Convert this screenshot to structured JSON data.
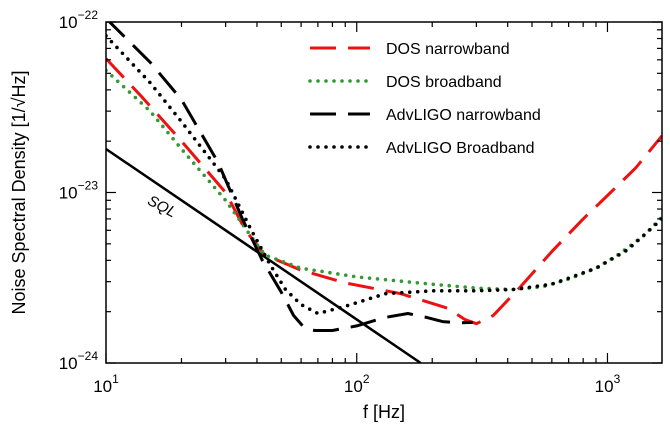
{
  "chart_data": {
    "type": "line",
    "xlabel": "f [Hz]",
    "ylabel": "Noise Spectral Density [1/√Hz]",
    "xscale": "log",
    "yscale": "log",
    "xlim": [
      10,
      1650
    ],
    "ylim": [
      1e-24,
      1e-22
    ],
    "x_ticks": [
      {
        "value": 10,
        "base": "10",
        "exp": "1"
      },
      {
        "value": 100,
        "base": "10",
        "exp": "2"
      },
      {
        "value": 1000,
        "base": "10",
        "exp": "3"
      }
    ],
    "y_ticks": [
      {
        "value": 1e-24,
        "base": "10",
        "exp": "−24"
      },
      {
        "value": 1e-23,
        "base": "10",
        "exp": "−23"
      },
      {
        "value": 1e-22,
        "base": "10",
        "exp": "−22"
      }
    ],
    "grid": false,
    "legend": "top-right",
    "annotations": [
      {
        "text": "SQL",
        "x": 14.5,
        "y": 8.6e-24
      }
    ],
    "series": [
      {
        "name": "SQL",
        "color": "#000000",
        "style": "solid",
        "in_legend": false,
        "points": [
          [
            10,
            1.8e-23
          ],
          [
            180,
            1e-24
          ]
        ]
      },
      {
        "name": "DOS narrowband",
        "color": "#ee1111",
        "style": "longdash",
        "in_legend": true,
        "points": [
          [
            10,
            6.1e-23
          ],
          [
            14,
            3.6e-23
          ],
          [
            20,
            2e-23
          ],
          [
            30,
            1e-23
          ],
          [
            36,
            6e-24
          ],
          [
            43,
            4.3e-24
          ],
          [
            60,
            3.5e-24
          ],
          [
            90,
            2.95e-24
          ],
          [
            150,
            2.55e-24
          ],
          [
            230,
            2.1e-24
          ],
          [
            270,
            1.8e-24
          ],
          [
            300,
            1.7e-24
          ],
          [
            350,
            1.9e-24
          ],
          [
            450,
            2.8e-24
          ],
          [
            600,
            4.5e-24
          ],
          [
            800,
            7e-24
          ],
          [
            1000,
            9.6e-24
          ],
          [
            1300,
            1.4e-23
          ],
          [
            1650,
            2.15e-23
          ]
        ]
      },
      {
        "name": "DOS broadband",
        "color": "#339933",
        "style": "dotted",
        "in_legend": true,
        "points": [
          [
            10,
            5.2e-23
          ],
          [
            15,
            3e-23
          ],
          [
            20,
            1.8e-23
          ],
          [
            30,
            9e-24
          ],
          [
            38,
            5.5e-24
          ],
          [
            43,
            4.3e-24
          ],
          [
            60,
            3.6e-24
          ],
          [
            100,
            3.2e-24
          ],
          [
            200,
            2.9e-24
          ],
          [
            300,
            2.75e-24
          ],
          [
            420,
            2.7e-24
          ],
          [
            550,
            2.8e-24
          ],
          [
            700,
            3.1e-24
          ],
          [
            900,
            3.6e-24
          ],
          [
            1100,
            4.3e-24
          ],
          [
            1400,
            5.6e-24
          ],
          [
            1650,
            7.2e-24
          ]
        ]
      },
      {
        "name": "AdvLIGO narrowband",
        "color": "#000000",
        "style": "longdash",
        "in_legend": true,
        "points": [
          [
            10,
            1.05e-22
          ],
          [
            15,
            5.8e-23
          ],
          [
            20,
            3.5e-23
          ],
          [
            28,
            1.5e-23
          ],
          [
            35,
            7e-24
          ],
          [
            42,
            4e-24
          ],
          [
            50,
            2.6e-24
          ],
          [
            56,
            1.9e-24
          ],
          [
            62,
            1.6e-24
          ],
          [
            68,
            1.55e-24
          ],
          [
            80,
            1.55e-24
          ],
          [
            100,
            1.65e-24
          ],
          [
            130,
            1.85e-24
          ],
          [
            160,
            1.95e-24
          ],
          [
            190,
            1.85e-24
          ],
          [
            220,
            1.75e-24
          ],
          [
            260,
            1.72e-24
          ],
          [
            290,
            1.73e-24
          ]
        ]
      },
      {
        "name": "AdvLIGO Broadband",
        "color": "#000000",
        "style": "dotted",
        "in_legend": true,
        "points": [
          [
            10,
            8.3e-23
          ],
          [
            15,
            4.4e-23
          ],
          [
            20,
            2.6e-23
          ],
          [
            30,
            1.2e-23
          ],
          [
            38,
            6e-24
          ],
          [
            45,
            3.8e-24
          ],
          [
            52,
            2.7e-24
          ],
          [
            60,
            2.2e-24
          ],
          [
            70,
            1.95e-24
          ],
          [
            90,
            2.15e-24
          ],
          [
            130,
            2.55e-24
          ],
          [
            200,
            2.65e-24
          ],
          [
            300,
            2.65e-24
          ],
          [
            420,
            2.7e-24
          ],
          [
            600,
            2.9e-24
          ],
          [
            900,
            3.6e-24
          ],
          [
            1200,
            4.6e-24
          ],
          [
            1650,
            7e-24
          ]
        ]
      }
    ]
  }
}
